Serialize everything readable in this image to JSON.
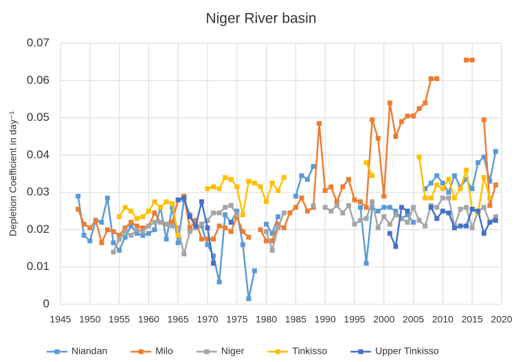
{
  "chart_data": {
    "type": "line",
    "title": "Niger River basin",
    "ylabel": "Depletion Coefficient in day⁻¹",
    "x": [
      1948,
      1949,
      1950,
      1951,
      1952,
      1953,
      1954,
      1955,
      1956,
      1957,
      1958,
      1959,
      1960,
      1961,
      1962,
      1963,
      1964,
      1965,
      1966,
      1967,
      1968,
      1969,
      1970,
      1971,
      1972,
      1973,
      1974,
      1975,
      1976,
      1977,
      1978,
      1979,
      1980,
      1981,
      1982,
      1983,
      1984,
      1985,
      1986,
      1987,
      1988,
      1989,
      1990,
      1991,
      1992,
      1993,
      1994,
      1995,
      1996,
      1997,
      1998,
      1999,
      2000,
      2001,
      2002,
      2003,
      2004,
      2005,
      2006,
      2007,
      2008,
      2009,
      2010,
      2011,
      2012,
      2013,
      2014,
      2015,
      2016,
      2017,
      2018,
      2019
    ],
    "xlim": [
      1945,
      2020
    ],
    "xticks": [
      1945,
      1950,
      1955,
      1960,
      1965,
      1970,
      1975,
      1980,
      1985,
      1990,
      1995,
      2000,
      2005,
      2010,
      2015,
      2020
    ],
    "ylim": [
      0,
      0.07
    ],
    "yticks": [
      0,
      0.01,
      0.02,
      0.03,
      0.04,
      0.05,
      0.06,
      0.07
    ],
    "grid": true,
    "legend": "bottom",
    "series": [
      {
        "name": "Niandan",
        "color": "#5b9bd5",
        "values": [
          0.029,
          0.0185,
          0.017,
          0.0225,
          0.022,
          0.0285,
          0.0165,
          0.0145,
          0.018,
          0.021,
          0.019,
          0.0185,
          0.019,
          0.02,
          0.026,
          0.0175,
          0.026,
          0.0165,
          0.028,
          0.024,
          0.021,
          0.021,
          0.016,
          0.013,
          0.006,
          0.024,
          0.022,
          0.025,
          0.016,
          0.0015,
          0.009,
          null,
          0.0215,
          0.019,
          0.0235,
          null,
          null,
          0.029,
          0.0345,
          0.0335,
          0.037,
          null,
          null,
          null,
          null,
          null,
          null,
          null,
          0.026,
          0.011,
          0.026,
          0.025,
          0.026,
          0.026,
          0.025,
          0.023,
          0.024,
          0.022,
          null,
          0.031,
          0.0325,
          0.0345,
          0.0325,
          0.03,
          0.0345,
          0.0315,
          0.0335,
          0.031,
          0.038,
          0.0395,
          0.033,
          0.041
        ]
      },
      {
        "name": "Milo",
        "color": "#ed7d31",
        "values": [
          0.0255,
          0.0215,
          0.0205,
          0.0225,
          0.0165,
          0.02,
          0.0195,
          0.0185,
          0.0205,
          0.022,
          0.021,
          0.0205,
          0.021,
          0.0245,
          0.022,
          0.0215,
          0.022,
          0.028,
          0.029,
          0.0205,
          0.0225,
          0.0175,
          0.0175,
          0.0175,
          0.021,
          0.0205,
          0.0195,
          0.0235,
          0.0195,
          0.018,
          null,
          0.02,
          0.017,
          0.017,
          0.0215,
          0.0205,
          0.0245,
          0.026,
          0.0285,
          0.025,
          0.026,
          0.0485,
          0.0305,
          0.0315,
          0.0275,
          0.0315,
          0.0335,
          0.028,
          0.0275,
          0.026,
          0.0495,
          0.0445,
          0.029,
          0.054,
          0.045,
          0.049,
          0.0505,
          0.0505,
          0.0525,
          0.054,
          0.0605,
          0.0605,
          null,
          null,
          null,
          null,
          0.0655,
          0.0655,
          null,
          0.0495,
          0.0265,
          0.032
        ]
      },
      {
        "name": "Niger",
        "color": "#a5a5a5",
        "values": [
          null,
          null,
          null,
          null,
          null,
          null,
          0.014,
          0.0175,
          0.0195,
          0.0185,
          0.02,
          0.0195,
          0.021,
          0.022,
          0.022,
          0.0215,
          0.021,
          0.0205,
          0.0135,
          0.0195,
          0.0205,
          0.0215,
          0.0225,
          0.0245,
          0.0245,
          0.026,
          0.0265,
          0.024,
          null,
          null,
          null,
          null,
          0.0195,
          0.0145,
          0.0205,
          0.0245,
          null,
          null,
          null,
          null,
          0.0265,
          null,
          0.026,
          0.025,
          0.0265,
          0.0245,
          0.0265,
          0.0215,
          0.0225,
          0.023,
          0.0275,
          0.0205,
          0.0235,
          0.0215,
          0.024,
          0.023,
          0.022,
          0.026,
          0.0225,
          0.021,
          0.0265,
          0.026,
          0.0285,
          0.0285,
          0.021,
          0.0255,
          0.026,
          0.0205,
          0.025,
          0.026,
          0.022,
          0.0235
        ]
      },
      {
        "name": "Tinkisso",
        "color": "#ffc000",
        "values": [
          null,
          null,
          null,
          null,
          null,
          null,
          null,
          0.0235,
          0.026,
          0.025,
          0.023,
          0.0235,
          0.025,
          0.0275,
          0.026,
          0.0275,
          0.027,
          0.0185,
          null,
          null,
          null,
          null,
          0.031,
          0.0315,
          0.031,
          0.034,
          0.0335,
          0.0315,
          0.024,
          0.033,
          0.0325,
          0.0315,
          0.0275,
          0.0325,
          0.0305,
          0.034,
          null,
          null,
          null,
          null,
          null,
          null,
          null,
          null,
          null,
          null,
          null,
          null,
          null,
          0.038,
          0.0345,
          null,
          null,
          null,
          null,
          null,
          null,
          null,
          0.0395,
          0.0285,
          0.0285,
          0.032,
          0.031,
          0.0335,
          0.0285,
          0.031,
          0.036,
          0.0255,
          0.0245,
          0.034,
          0.0285,
          null
        ]
      },
      {
        "name": "Upper Tinkisso",
        "color": "#4472c4",
        "values": [
          null,
          null,
          null,
          null,
          null,
          null,
          null,
          null,
          null,
          null,
          null,
          null,
          null,
          null,
          null,
          null,
          null,
          0.028,
          0.0285,
          0.0235,
          0.021,
          0.0275,
          0.0205,
          0.011,
          null,
          null,
          0.022,
          null,
          null,
          null,
          null,
          null,
          null,
          null,
          null,
          null,
          null,
          null,
          null,
          null,
          null,
          null,
          null,
          null,
          null,
          null,
          null,
          null,
          null,
          null,
          null,
          null,
          null,
          0.019,
          0.0155,
          0.026,
          0.025,
          null,
          null,
          null,
          0.026,
          0.023,
          0.025,
          0.0245,
          0.0205,
          0.021,
          0.021,
          0.0255,
          0.025,
          0.019,
          0.022,
          0.0225
        ]
      }
    ]
  }
}
